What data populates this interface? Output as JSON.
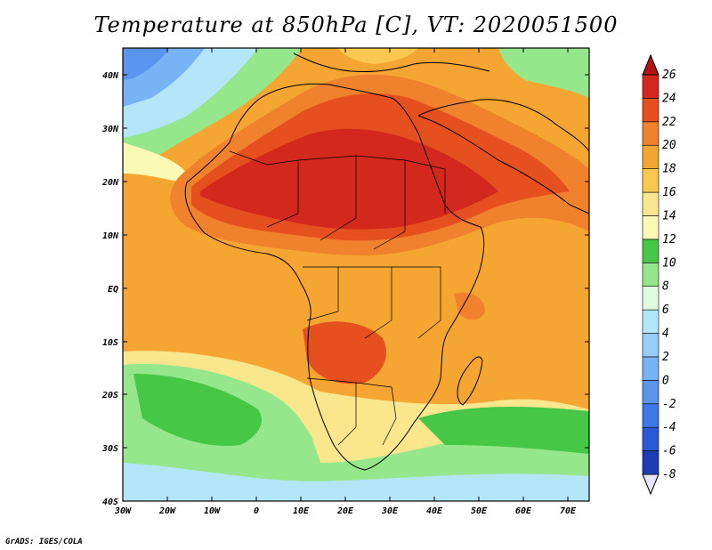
{
  "title": "Temperature at 850hPa [C], VT: 2020051500",
  "credit": "GrADS: IGES/COLA",
  "map": {
    "variable": "Temperature at 850hPa",
    "units": "C",
    "valid_time": "2020051500",
    "region": "Africa",
    "lon_range": [
      -30,
      75
    ],
    "lat_range": [
      -40,
      45
    ],
    "x_ticks": [
      "30W",
      "20W",
      "10W",
      "0",
      "10E",
      "20E",
      "30E",
      "40E",
      "50E",
      "60E",
      "70E"
    ],
    "y_ticks": [
      "40N",
      "30N",
      "20N",
      "10N",
      "EQ",
      "10S",
      "20S",
      "30S",
      "40S"
    ]
  },
  "colorbar": {
    "levels": [
      "-8",
      "-6",
      "-4",
      "-2",
      "0",
      "2",
      "4",
      "6",
      "8",
      "10",
      "12",
      "14",
      "16",
      "18",
      "20",
      "22",
      "24",
      "26"
    ],
    "colors": [
      "#1a1a78",
      "#1e3cb4",
      "#2a5ad2",
      "#3c78e6",
      "#5a96f0",
      "#78b4f5",
      "#96cdfa",
      "#b4e6fa",
      "#e0fae0",
      "#96e68c",
      "#46c846",
      "#fafab4",
      "#fae68c",
      "#fac850",
      "#f5a532",
      "#f0822d",
      "#e6501e",
      "#d2281e",
      "#b41414"
    ]
  }
}
